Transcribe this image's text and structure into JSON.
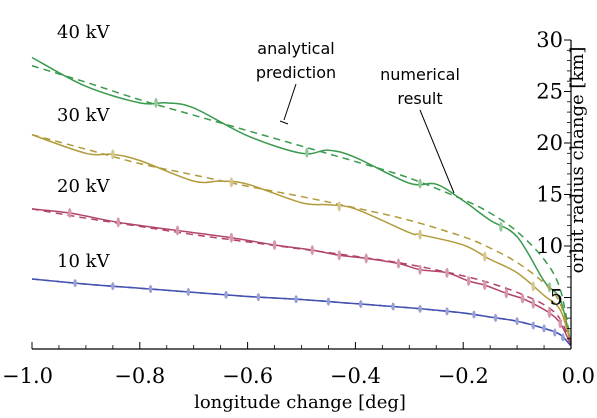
{
  "chart_data": {
    "type": "line",
    "title": "",
    "xlabel": "longitude change [deg]",
    "ylabel": "orbit radius change [km]",
    "xlim": [
      -1.0,
      0.0
    ],
    "ylim": [
      0,
      30
    ],
    "x_ticks": [
      "−1.0",
      "−0.8",
      "−0.6",
      "−0.4",
      "−0.2",
      "0.0"
    ],
    "y_ticks": [
      "5",
      "10",
      "15",
      "20",
      "25",
      "30"
    ],
    "y_tick_values": [
      5,
      10,
      15,
      20,
      25,
      30
    ],
    "x_tick_values": [
      -1.0,
      -0.8,
      -0.6,
      -0.4,
      -0.2,
      0.0
    ],
    "y_axis_side": "right",
    "grid": false,
    "annotations": [
      {
        "lines": [
          "analytical",
          "prediction"
        ],
        "points_to": "analytical prediction (dashed)"
      },
      {
        "lines": [
          "numerical",
          "result"
        ],
        "points_to": "numerical result (solid)"
      }
    ],
    "series": [
      {
        "name": "40 kV",
        "color": "#3a9a4e",
        "analytical": {
          "x": [
            -1.0,
            -0.9,
            -0.8,
            -0.7,
            -0.6,
            -0.5,
            -0.4,
            -0.3,
            -0.2,
            -0.15,
            -0.1,
            -0.05,
            -0.02,
            0.0
          ],
          "y": [
            27.5,
            25.9,
            24.2,
            22.7,
            21.2,
            19.7,
            18.2,
            16.6,
            14.5,
            13.2,
            11.4,
            8.7,
            5.8,
            0.5
          ]
        },
        "numerical": {
          "x": [
            -1.0,
            -0.9,
            -0.8,
            -0.75,
            -0.7,
            -0.6,
            -0.5,
            -0.45,
            -0.4,
            -0.3,
            -0.25,
            -0.2,
            -0.15,
            -0.1,
            -0.05,
            -0.02,
            0.0
          ],
          "y": [
            28.3,
            25.5,
            23.9,
            23.9,
            23.4,
            20.7,
            19.0,
            19.3,
            18.6,
            16.1,
            16.0,
            14.4,
            12.5,
            10.9,
            6.6,
            4.8,
            0.5
          ]
        },
        "marker_x": [
          -0.77,
          -0.49,
          -0.28,
          -0.13,
          -0.04
        ]
      },
      {
        "name": "30 kV",
        "color": "#b29a3a",
        "analytical": {
          "x": [
            -1.0,
            -0.9,
            -0.8,
            -0.7,
            -0.6,
            -0.5,
            -0.4,
            -0.3,
            -0.2,
            -0.15,
            -0.1,
            -0.05,
            -0.02,
            0.0
          ],
          "y": [
            20.8,
            19.4,
            18.0,
            16.9,
            15.8,
            14.8,
            13.7,
            12.5,
            10.9,
            9.8,
            8.4,
            6.4,
            4.4,
            0.5
          ]
        },
        "numerical": {
          "x": [
            -1.0,
            -0.9,
            -0.85,
            -0.8,
            -0.7,
            -0.65,
            -0.6,
            -0.5,
            -0.45,
            -0.4,
            -0.3,
            -0.28,
            -0.2,
            -0.15,
            -0.1,
            -0.05,
            -0.02,
            0.0
          ],
          "y": [
            20.8,
            19.0,
            18.9,
            18.3,
            16.3,
            16.3,
            16.0,
            14.2,
            14.0,
            13.6,
            11.3,
            11.1,
            10.1,
            8.7,
            7.4,
            5.2,
            3.8,
            0.5
          ]
        },
        "marker_x": [
          -0.85,
          -0.63,
          -0.43,
          -0.28,
          -0.16,
          -0.07
        ]
      },
      {
        "name": "20 kV",
        "color": "#b2446a",
        "analytical": {
          "x": [
            -1.0,
            -0.9,
            -0.8,
            -0.7,
            -0.6,
            -0.5,
            -0.4,
            -0.3,
            -0.2,
            -0.15,
            -0.1,
            -0.05,
            -0.02,
            0.0
          ],
          "y": [
            13.6,
            12.7,
            11.9,
            11.1,
            10.4,
            9.7,
            9.0,
            8.2,
            7.1,
            6.4,
            5.5,
            4.3,
            2.9,
            0.4
          ]
        },
        "numerical": {
          "x": [
            -1.0,
            -0.93,
            -0.84,
            -0.73,
            -0.63,
            -0.55,
            -0.48,
            -0.43,
            -0.38,
            -0.32,
            -0.28,
            -0.23,
            -0.19,
            -0.16,
            -0.12,
            -0.09,
            -0.07,
            -0.04,
            -0.02,
            0.0
          ],
          "y": [
            13.6,
            13.2,
            12.3,
            11.5,
            10.8,
            10.1,
            9.6,
            9.1,
            8.8,
            8.3,
            7.7,
            7.4,
            6.6,
            6.2,
            5.4,
            4.9,
            4.4,
            3.5,
            2.5,
            0.4
          ]
        },
        "marker_x": [
          -0.93,
          -0.84,
          -0.73,
          -0.63,
          -0.55,
          -0.48,
          -0.43,
          -0.38,
          -0.32,
          -0.28,
          -0.23,
          -0.19,
          -0.16,
          -0.12,
          -0.09,
          -0.07,
          -0.04,
          -0.02
        ]
      },
      {
        "name": "10 kV",
        "color": "#4352b0",
        "analytical": {
          "x": [
            -1.0,
            -0.9,
            -0.8,
            -0.7,
            -0.6,
            -0.5,
            -0.4,
            -0.3,
            -0.2,
            -0.15,
            -0.1,
            -0.05,
            -0.02,
            0.0
          ],
          "y": [
            6.8,
            6.3,
            5.9,
            5.5,
            5.1,
            4.8,
            4.4,
            4.0,
            3.5,
            3.1,
            2.7,
            2.0,
            1.4,
            0.3
          ]
        },
        "numerical": {
          "x": [
            -1.0,
            -0.9,
            -0.8,
            -0.7,
            -0.6,
            -0.5,
            -0.4,
            -0.3,
            -0.2,
            -0.15,
            -0.1,
            -0.05,
            -0.02,
            0.0
          ],
          "y": [
            6.8,
            6.3,
            5.9,
            5.5,
            5.1,
            4.8,
            4.4,
            4.0,
            3.5,
            3.1,
            2.7,
            2.0,
            1.4,
            0.3
          ]
        },
        "marker_x": [
          -0.92,
          -0.85,
          -0.78,
          -0.71,
          -0.64,
          -0.58,
          -0.51,
          -0.45,
          -0.39,
          -0.33,
          -0.28,
          -0.23,
          -0.18,
          -0.14,
          -0.1,
          -0.07,
          -0.05,
          -0.03,
          -0.015
        ]
      }
    ]
  }
}
